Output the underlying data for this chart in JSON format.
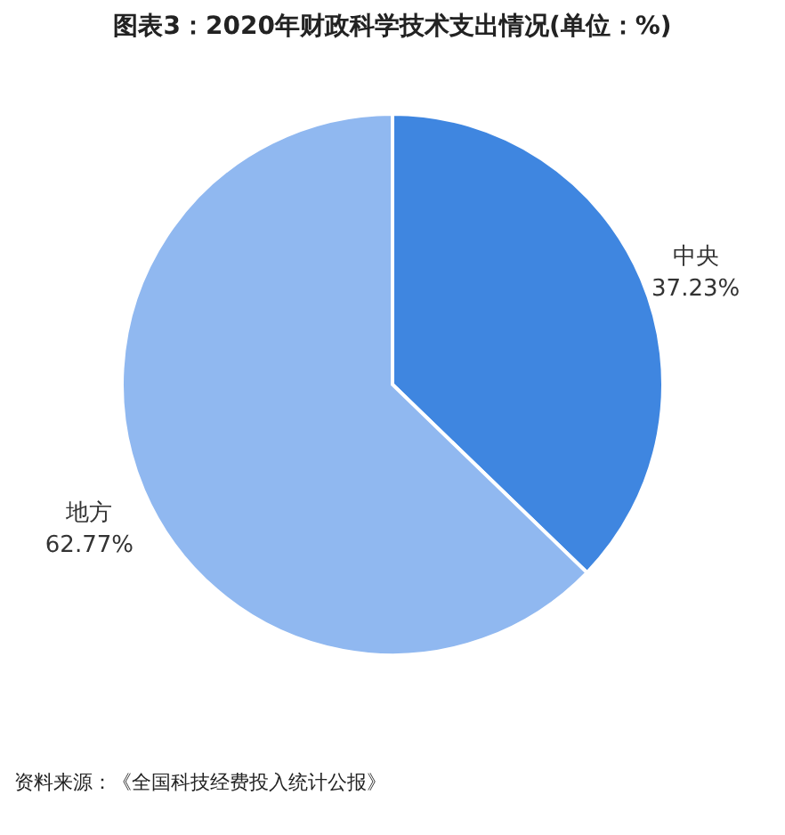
{
  "chart_data": {
    "type": "pie",
    "title": "图表3：2020年财政科学技术支出情况(单位：%)",
    "categories": [
      "中央",
      "地方"
    ],
    "values": [
      37.23,
      62.77
    ],
    "colors": [
      "#3f86e0",
      "#90b8f0"
    ],
    "value_labels": [
      "37.23%",
      "62.77%"
    ],
    "annotations": [
      "资料来源：《全国科技经费投入统计公报》"
    ],
    "legend": false
  }
}
